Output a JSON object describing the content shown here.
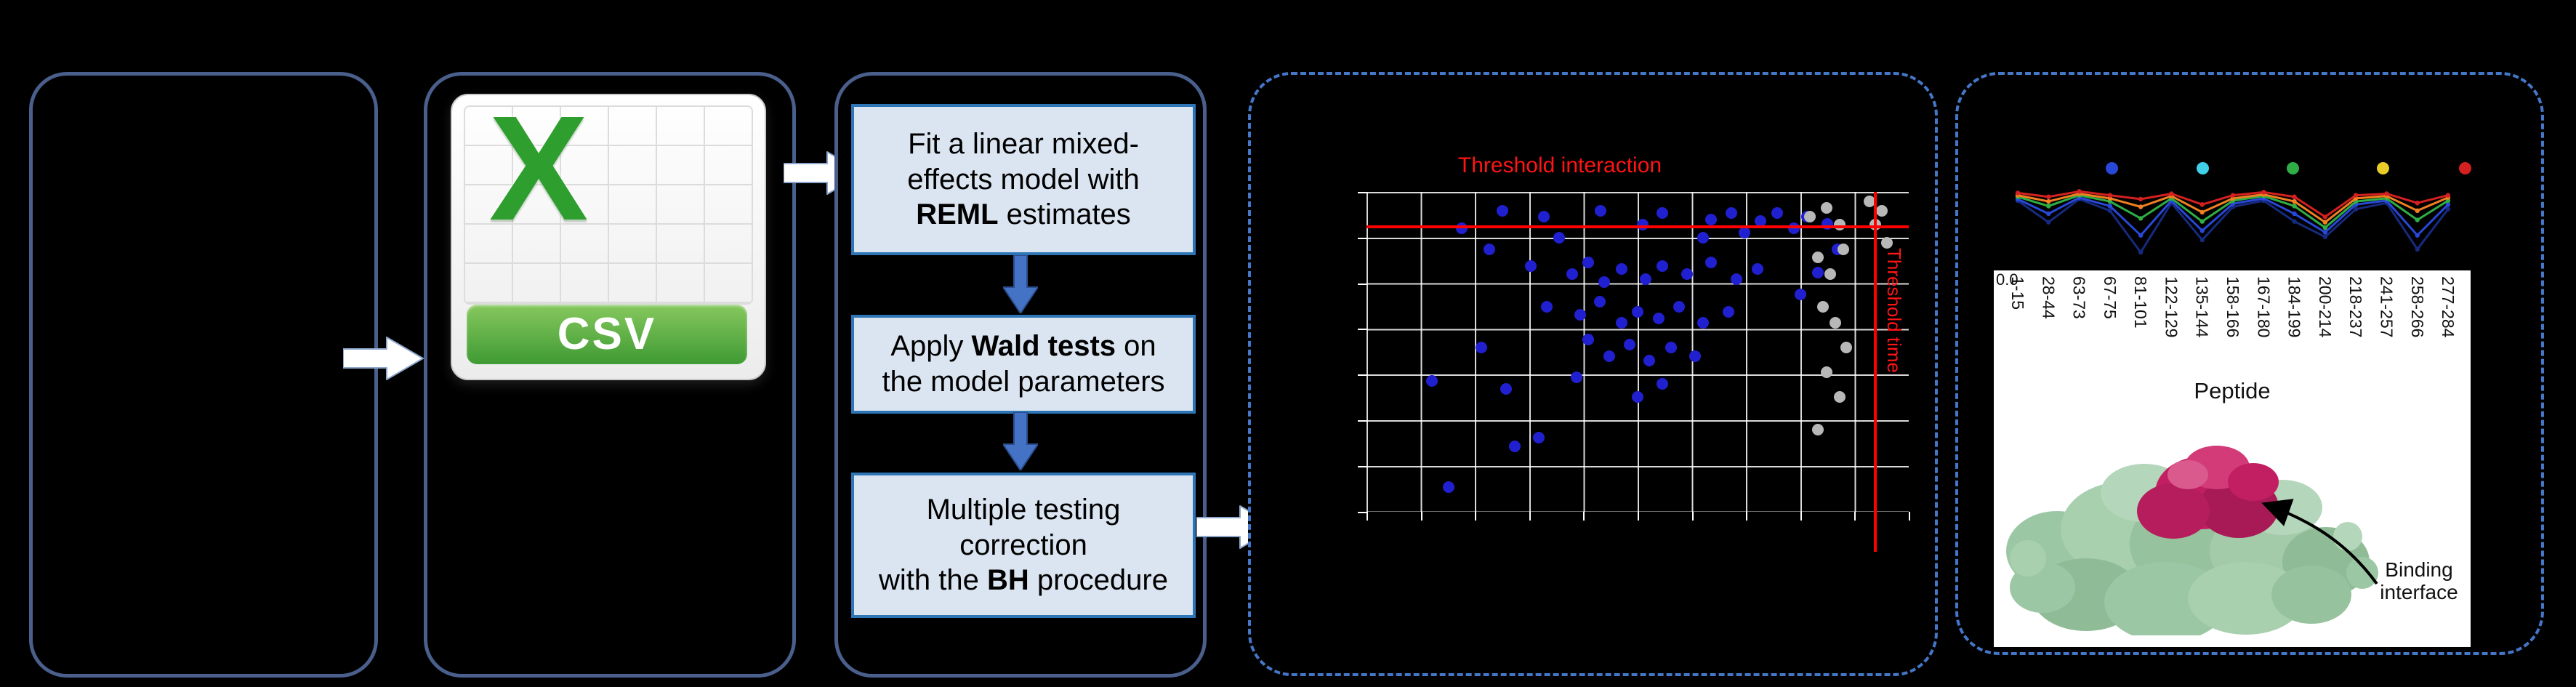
{
  "figure": {
    "csv_file": {
      "logo_letter": "X",
      "banner": "CSV"
    },
    "model_steps": [
      {
        "lines": [
          [
            {
              "t": "Fit a linear mixed-"
            }
          ],
          [
            {
              "t": "effects model with"
            }
          ],
          [
            {
              "t": "REML",
              "b": true
            },
            {
              "t": " estimates"
            }
          ]
        ]
      },
      {
        "lines": [
          [
            {
              "t": "Apply "
            },
            {
              "t": "Wald tests",
              "b": true
            },
            {
              "t": " on"
            }
          ],
          [
            {
              "t": "the model parameters"
            }
          ]
        ]
      },
      {
        "lines": [
          [
            {
              "t": "Multiple testing"
            }
          ],
          [
            {
              "t": "correction"
            }
          ],
          [
            {
              "t": "with the "
            },
            {
              "t": "BH",
              "b": true
            },
            {
              "t": " procedure"
            }
          ]
        ]
      }
    ],
    "results": {
      "annotation": "Binding interface"
    }
  },
  "chart_data": [
    {
      "type": "scatter",
      "title": "Threshold interaction",
      "grid": true,
      "coords": "fraction of plot area, origin top-left (axis tick values not legible in screenshot)",
      "threshold_lines": {
        "horizontal_label": "Threshold interaction",
        "vertical_label": "Threshold time",
        "color": "#ff0000"
      },
      "series": [
        {
          "name": "blue-points",
          "color": "#2020d0",
          "points": [
            [
              0.176,
              0.113
            ],
            [
              0.227,
              0.179
            ],
            [
              0.327,
              0.077
            ],
            [
              0.355,
              0.144
            ],
            [
              0.509,
              0.103
            ],
            [
              0.545,
              0.067
            ],
            [
              0.621,
              0.144
            ],
            [
              0.636,
              0.087
            ],
            [
              0.673,
              0.067
            ],
            [
              0.697,
              0.128
            ],
            [
              0.727,
              0.092
            ],
            [
              0.758,
              0.067
            ],
            [
              0.788,
              0.113
            ],
            [
              0.812,
              0.077
            ],
            [
              0.303,
              0.231
            ],
            [
              0.379,
              0.256
            ],
            [
              0.409,
              0.221
            ],
            [
              0.439,
              0.282
            ],
            [
              0.47,
              0.241
            ],
            [
              0.515,
              0.272
            ],
            [
              0.545,
              0.231
            ],
            [
              0.591,
              0.256
            ],
            [
              0.636,
              0.221
            ],
            [
              0.682,
              0.272
            ],
            [
              0.721,
              0.241
            ],
            [
              0.333,
              0.359
            ],
            [
              0.394,
              0.385
            ],
            [
              0.43,
              0.344
            ],
            [
              0.47,
              0.41
            ],
            [
              0.5,
              0.374
            ],
            [
              0.539,
              0.395
            ],
            [
              0.576,
              0.359
            ],
            [
              0.621,
              0.41
            ],
            [
              0.667,
              0.374
            ],
            [
              0.212,
              0.487
            ],
            [
              0.409,
              0.462
            ],
            [
              0.448,
              0.513
            ],
            [
              0.485,
              0.477
            ],
            [
              0.521,
              0.528
            ],
            [
              0.561,
              0.487
            ],
            [
              0.606,
              0.513
            ],
            [
              0.121,
              0.59
            ],
            [
              0.258,
              0.615
            ],
            [
              0.388,
              0.579
            ],
            [
              0.5,
              0.641
            ],
            [
              0.545,
              0.6
            ],
            [
              0.273,
              0.795
            ],
            [
              0.318,
              0.769
            ],
            [
              0.152,
              0.923
            ],
            [
              0.85,
              0.1
            ],
            [
              0.868,
              0.18
            ],
            [
              0.832,
              0.252
            ],
            [
              0.8,
              0.32
            ],
            [
              0.431,
              0.06
            ],
            [
              0.25,
              0.06
            ]
          ]
        },
        {
          "name": "gray-points",
          "color": "#b8b8b8",
          "points": [
            [
              0.818,
              0.077
            ],
            [
              0.848,
              0.051
            ],
            [
              0.873,
              0.103
            ],
            [
              0.833,
              0.205
            ],
            [
              0.855,
              0.256
            ],
            [
              0.879,
              0.179
            ],
            [
              0.842,
              0.359
            ],
            [
              0.864,
              0.41
            ],
            [
              0.885,
              0.487
            ],
            [
              0.848,
              0.564
            ],
            [
              0.873,
              0.641
            ],
            [
              0.833,
              0.744
            ],
            [
              0.939,
              0.103
            ],
            [
              0.95,
              0.06
            ],
            [
              0.928,
              0.03
            ],
            [
              0.96,
              0.16
            ]
          ]
        }
      ]
    },
    {
      "type": "line",
      "categories": [
        "1-15",
        "28-44",
        "63-73",
        "67-75",
        "81-101",
        "122-129",
        "135-144",
        "158-166",
        "167-180",
        "184-199",
        "200-214",
        "218-237",
        "241-257",
        "258-266",
        "277-284"
      ],
      "xlabel": "Peptide",
      "y_tick_labels": [
        "0.0"
      ],
      "values_note": "normalized 0-1 (y-axis values not legible in screenshot)",
      "legend_dots": [
        "#2848d8",
        "#3fd0e8",
        "#2fae46",
        "#e8cc28",
        "#d42020"
      ],
      "series": [
        {
          "name": "navy-line",
          "color": "#162a80",
          "values": [
            0.83,
            0.55,
            0.85,
            0.7,
            0.16,
            0.8,
            0.32,
            0.75,
            0.83,
            0.56,
            0.36,
            0.72,
            0.8,
            0.2,
            0.72
          ]
        },
        {
          "name": "blue-line",
          "color": "#2848d8",
          "values": [
            0.85,
            0.66,
            0.87,
            0.76,
            0.38,
            0.83,
            0.44,
            0.79,
            0.86,
            0.66,
            0.42,
            0.78,
            0.83,
            0.38,
            0.78
          ]
        },
        {
          "name": "green-line",
          "color": "#2fae46",
          "values": [
            0.88,
            0.76,
            0.9,
            0.82,
            0.6,
            0.86,
            0.56,
            0.83,
            0.89,
            0.76,
            0.48,
            0.82,
            0.86,
            0.58,
            0.83
          ]
        },
        {
          "name": "orange-line",
          "color": "#f08020",
          "values": [
            0.9,
            0.82,
            0.92,
            0.86,
            0.75,
            0.89,
            0.68,
            0.86,
            0.91,
            0.82,
            0.55,
            0.86,
            0.89,
            0.7,
            0.87
          ]
        },
        {
          "name": "red-line",
          "color": "#d42020",
          "values": [
            0.93,
            0.88,
            0.95,
            0.9,
            0.85,
            0.92,
            0.78,
            0.9,
            0.94,
            0.88,
            0.62,
            0.9,
            0.92,
            0.8,
            0.9
          ]
        }
      ]
    }
  ]
}
